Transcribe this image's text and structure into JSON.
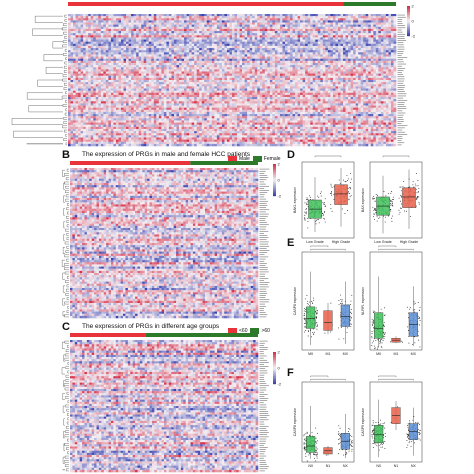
{
  "panels": {
    "B": {
      "letter": "B",
      "title": "The expression of PRGs in male and female HCC patients",
      "legend": [
        {
          "label": "Male",
          "color": "#e8333a"
        },
        {
          "label": "Female",
          "color": "#2d7a2b"
        }
      ]
    },
    "C": {
      "letter": "C",
      "title": "The expression of PRGs in different age groups",
      "legend": [
        {
          "label": "<60",
          "color": "#e8333a"
        },
        {
          "label": ">60",
          "color": "#2d7a2b"
        }
      ]
    },
    "D": {
      "letter": "D",
      "plots": [
        {
          "ylabel": "BAK1 expression",
          "categories": [
            "Low Grade",
            "High Grade"
          ],
          "colors": [
            "#3fbf5a",
            "#e8604a"
          ]
        },
        {
          "ylabel": "BAX expression",
          "categories": [
            "Low Grade",
            "High Grade"
          ],
          "colors": [
            "#3fbf5a",
            "#e8604a"
          ]
        }
      ]
    },
    "E": {
      "letter": "E",
      "plots": [
        {
          "ylabel": "CASP8 expression",
          "categories": [
            "M0",
            "M1",
            "MX"
          ],
          "colors": [
            "#3fbf5a",
            "#e8604a",
            "#5b8ed6"
          ]
        },
        {
          "ylabel": "NLRP1 expression",
          "categories": [
            "M0",
            "M1",
            "MX"
          ],
          "colors": [
            "#3fbf5a",
            "#e8604a",
            "#5b8ed6"
          ]
        }
      ]
    },
    "F": {
      "letter": "F",
      "plots": [
        {
          "ylabel": "CASP8 expression",
          "categories": [
            "N0",
            "N1",
            "NX"
          ],
          "colors": [
            "#3fbf5a",
            "#e8604a",
            "#5b8ed6"
          ]
        },
        {
          "ylabel": "CASP9 expression",
          "categories": [
            "N0",
            "N1",
            "NX"
          ],
          "colors": [
            "#3fbf5a",
            "#e8604a",
            "#5b8ed6"
          ]
        }
      ]
    }
  },
  "heatmap_colors": {
    "high": "#d6304a",
    "mid": "#f4f0f4",
    "low": "#3a44b0"
  },
  "colorbar_ticks": [
    "2",
    "0",
    "-2"
  ]
}
